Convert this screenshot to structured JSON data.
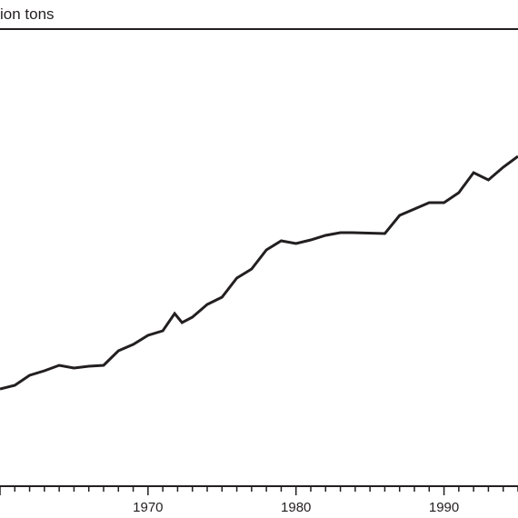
{
  "chart_data": {
    "type": "line",
    "title": "",
    "unit_label": "ion tons",
    "xlabel": "",
    "ylabel": "",
    "xlim": [
      1960,
      1995
    ],
    "x_tick_labels": [
      "1970",
      "1980",
      "1990"
    ],
    "grid": false,
    "legend": "none",
    "line_color": "#231f20",
    "axis_color": "#231f20",
    "series": [
      {
        "x": [
          1960,
          1961,
          1962,
          1963,
          1964,
          1965,
          1966,
          1967,
          1968,
          1969,
          1970,
          1971,
          1971.8,
          1972.3,
          1973,
          1974,
          1975,
          1976,
          1977,
          1978,
          1979,
          1980,
          1981,
          1982,
          1983,
          1983.8,
          1986,
          1987,
          1988,
          1989,
          1990,
          1991,
          1992,
          1993,
          1994,
          1995
        ],
        "y": [
          428,
          424,
          413,
          408,
          402,
          405,
          403,
          402,
          386,
          379,
          369,
          364,
          345,
          355,
          349,
          335,
          327,
          306,
          296,
          275,
          265,
          268,
          264,
          259,
          256,
          256,
          257,
          237,
          230,
          223,
          223,
          212,
          190,
          198,
          184,
          172
        ]
      }
    ]
  }
}
